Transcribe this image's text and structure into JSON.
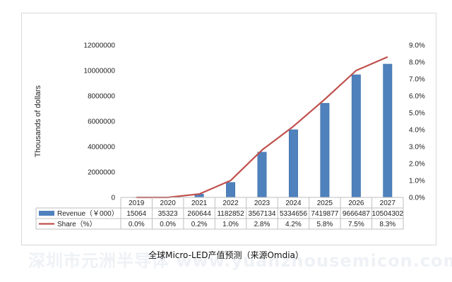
{
  "chart_data": {
    "type": "bar",
    "categories": [
      "2019",
      "2020",
      "2021",
      "2022",
      "2023",
      "2024",
      "2025",
      "2026",
      "2027"
    ],
    "series": [
      {
        "name": "Revenue（￥000）",
        "type": "bar",
        "axis": "left",
        "color": "#4f81bd",
        "values": [
          15064,
          35323,
          260644,
          1182852,
          3567134,
          5334656,
          7419877,
          9666487,
          10504302
        ],
        "labels": [
          "15064",
          "35323",
          "260644",
          "1182852",
          "3567134",
          "5334656",
          "7419877",
          "9666487",
          "10504302"
        ]
      },
      {
        "name": "Share（%）",
        "type": "line",
        "axis": "right",
        "color": "#c0504d",
        "values": [
          0.0,
          0.0,
          0.2,
          1.0,
          2.8,
          4.2,
          5.8,
          7.5,
          8.3
        ],
        "labels": [
          "0.0%",
          "0.0%",
          "0.2%",
          "1.0%",
          "2.8%",
          "4.2%",
          "5.8%",
          "7.5%",
          "8.3%"
        ]
      }
    ],
    "ylabel": "Thousands of dollars",
    "ylim": [
      0,
      12000000
    ],
    "y_ticks": [
      "0",
      "2000000",
      "4000000",
      "6000000",
      "8000000",
      "10000000",
      "12000000"
    ],
    "y2lim": [
      0,
      9.0
    ],
    "y2_ticks": [
      "0.0%",
      "1.0%",
      "2.0%",
      "3.0%",
      "4.0%",
      "5.0%",
      "6.0%",
      "7.0%",
      "8.0%",
      "9.0%"
    ],
    "data_table": true,
    "grid": false
  },
  "caption": "全球Micro-LED产值预测（来源Omdia）",
  "watermark": "深圳市元洲半导体    www.yuanzhousemicon.com.cn"
}
